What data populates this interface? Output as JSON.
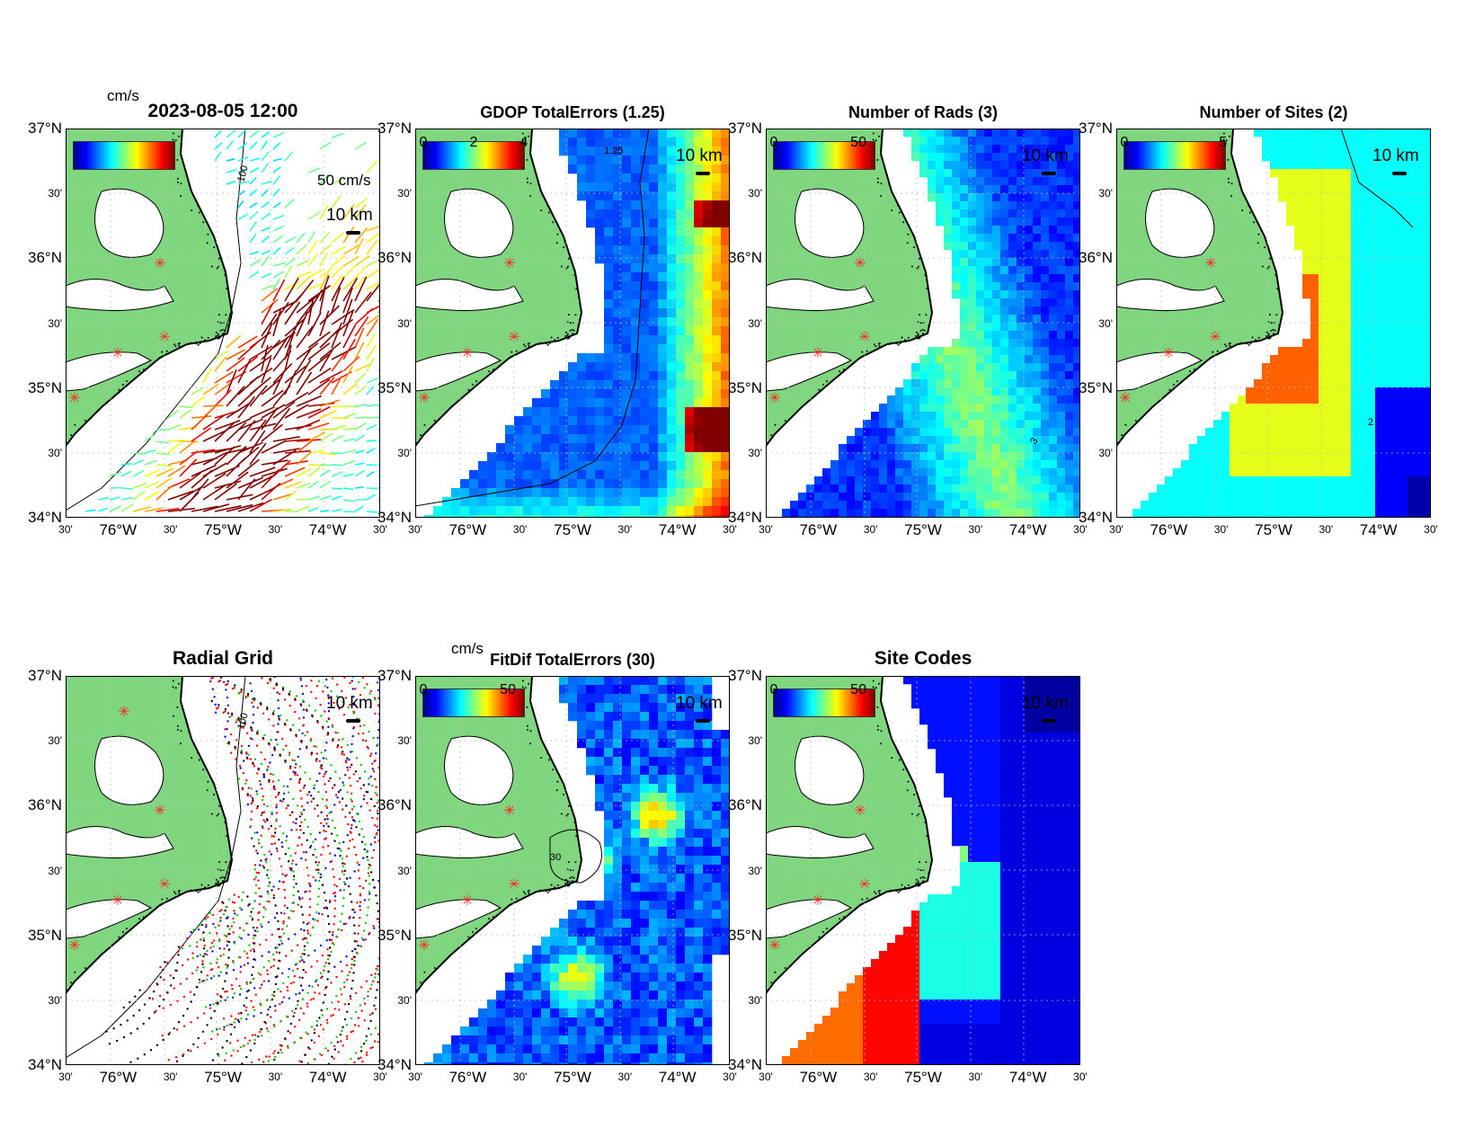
{
  "colors": {
    "land": "#7fd67f",
    "coast": "#000000",
    "site_marker": "#ff2020",
    "colormap": [
      "#00008f",
      "#0000ff",
      "#0080ff",
      "#00ffff",
      "#80ff80",
      "#ffff00",
      "#ff8000",
      "#ff0000",
      "#800000"
    ]
  },
  "axes": {
    "lat_labels": [
      "37°N",
      "30'",
      "36°N",
      "30'",
      "35°N",
      "30'",
      "34°N"
    ],
    "lon_labels": [
      "30'",
      "76°W",
      "30'",
      "75°W",
      "30'",
      "74°W",
      "30'"
    ]
  },
  "scale_km": "10 km",
  "chart_data": [
    {
      "id": "currents",
      "type": "vector-map",
      "title": "2023-08-05 12:00",
      "colorbar": {
        "label": "cm/s",
        "ticks": []
      },
      "reference_vector": "50 cm/s",
      "contour_label": "100",
      "ylim": [
        34.0,
        37.0
      ],
      "xlim": [
        -76.5,
        -73.5
      ]
    },
    {
      "id": "gdop",
      "type": "heatmap-map",
      "title": "GDOP TotalErrors (1.25)",
      "colorbar": {
        "label": "",
        "ticks": [
          "0",
          "2",
          "4"
        ],
        "range": [
          0,
          4
        ]
      },
      "contour_label": "1.25",
      "ylim": [
        34.0,
        37.0
      ],
      "xlim": [
        -76.5,
        -73.5
      ]
    },
    {
      "id": "nrads",
      "type": "heatmap-map",
      "title": "Number of Rads (3)",
      "colorbar": {
        "label": "",
        "ticks": [
          "0",
          "50"
        ],
        "range": [
          0,
          100
        ]
      },
      "contour_label": "3",
      "ylim": [
        34.0,
        37.0
      ],
      "xlim": [
        -76.5,
        -73.5
      ]
    },
    {
      "id": "nsites",
      "type": "heatmap-map",
      "title": "Number of Sites (2)",
      "colorbar": {
        "label": "",
        "ticks": [
          "0",
          "5"
        ],
        "range": [
          0,
          7
        ]
      },
      "contour_label": "2",
      "ylim": [
        34.0,
        37.0
      ],
      "xlim": [
        -76.5,
        -73.5
      ]
    },
    {
      "id": "radgrid",
      "type": "scatter-map",
      "title": "Radial Grid",
      "series": [
        {
          "color": "#0000ff"
        },
        {
          "color": "#ff0000"
        },
        {
          "color": "#00cc00"
        },
        {
          "color": "#000000"
        }
      ],
      "contour_label": "100",
      "ylim": [
        34.0,
        37.0
      ],
      "xlim": [
        -76.5,
        -73.5
      ]
    },
    {
      "id": "fitdif",
      "type": "heatmap-map",
      "title": "FitDif TotalErrors (30)",
      "colorbar": {
        "label": "cm/s",
        "ticks": [
          "0",
          "50"
        ],
        "range": [
          0,
          100
        ]
      },
      "contour_label": "30",
      "ylim": [
        34.0,
        37.0
      ],
      "xlim": [
        -76.5,
        -73.5
      ]
    },
    {
      "id": "sitecodes",
      "type": "heatmap-map",
      "title": "Site Codes",
      "colorbar": {
        "label": "",
        "ticks": [
          "0",
          "50"
        ],
        "range": [
          0,
          100
        ]
      },
      "ylim": [
        34.0,
        37.0
      ],
      "xlim": [
        -76.5,
        -73.5
      ]
    }
  ]
}
